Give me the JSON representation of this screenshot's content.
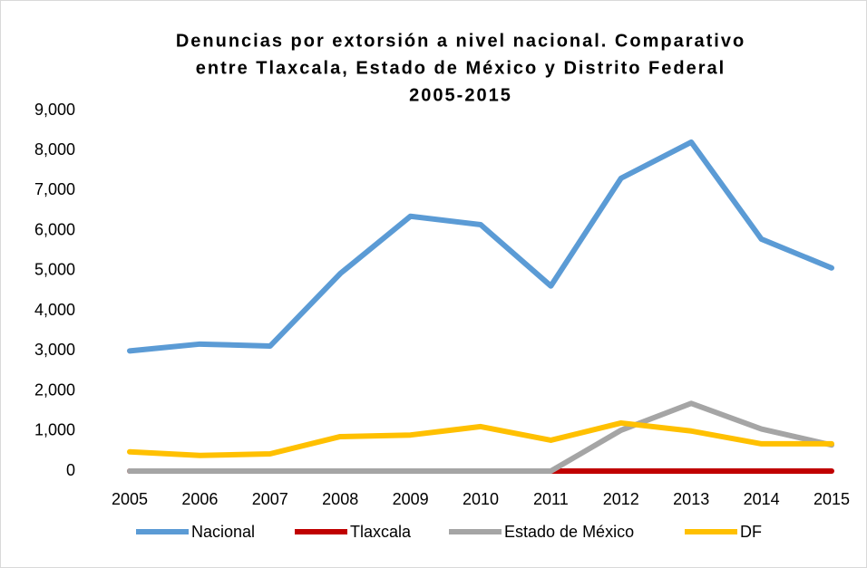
{
  "chart_data": {
    "type": "line",
    "title": [
      "Denuncias por extorsión a nivel nacional. Comparativo",
      "entre Tlaxcala, Estado de México y Distrito Federal",
      "2005-2015"
    ],
    "categories": [
      "2005",
      "2006",
      "2007",
      "2008",
      "2009",
      "2010",
      "2011",
      "2012",
      "2013",
      "2014",
      "2015"
    ],
    "series": [
      {
        "name": "Nacional",
        "color": "#5b9bd5",
        "values": [
          3000,
          3170,
          3120,
          4930,
          6360,
          6150,
          4620,
          7310,
          8210,
          5790,
          5070
        ]
      },
      {
        "name": "Tlaxcala",
        "color": "#c00000",
        "values": [
          0,
          0,
          0,
          0,
          0,
          0,
          0,
          0,
          0,
          0,
          0
        ]
      },
      {
        "name": "Estado de México",
        "color": "#a5a5a5",
        "values": [
          0,
          0,
          0,
          0,
          0,
          0,
          0,
          1020,
          1690,
          1050,
          650
        ]
      },
      {
        "name": "DF",
        "color": "#ffc000",
        "values": [
          480,
          390,
          430,
          860,
          900,
          1110,
          770,
          1200,
          1000,
          680,
          680
        ]
      }
    ],
    "ylim": [
      0,
      9000
    ],
    "yticks": [
      0,
      {
        "value": 1000,
        "label": "1,000"
      },
      {
        "value": 2000,
        "label": "2,000"
      },
      {
        "value": 3000,
        "label": "3,000"
      },
      {
        "value": 4000,
        "label": "4,000"
      },
      {
        "value": 5000,
        "label": "5,000"
      },
      {
        "value": 6000,
        "label": "6,000"
      },
      {
        "value": 7000,
        "label": "7,000"
      },
      {
        "value": 8000,
        "label": "8,000"
      },
      {
        "value": 9000,
        "label": "9,000"
      }
    ],
    "legend": "bottom"
  }
}
